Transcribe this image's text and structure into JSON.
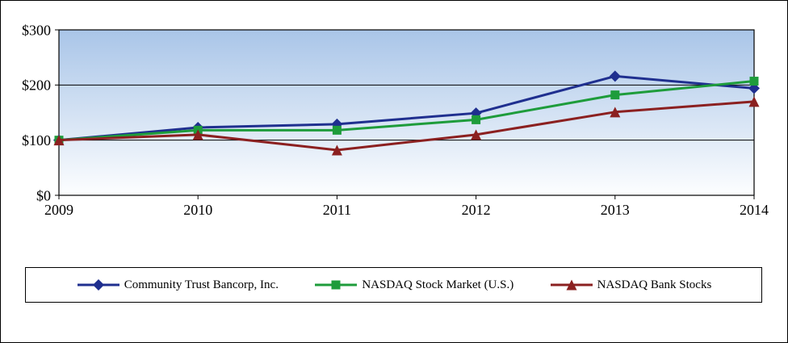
{
  "chart_data": {
    "type": "line",
    "title": "",
    "xlabel": "",
    "ylabel": "",
    "categories": [
      "2009",
      "2010",
      "2011",
      "2012",
      "2013",
      "2014"
    ],
    "ylim": [
      0,
      300
    ],
    "yticks": [
      0,
      100,
      200,
      300
    ],
    "ytick_labels": [
      "$0",
      "$100",
      "$200",
      "$300"
    ],
    "grid": "horizontal",
    "legend_position": "bottom",
    "plot_background": "blue-to-white vertical gradient",
    "series": [
      {
        "name": "Community Trust Bancorp, Inc.",
        "color": "#1F2F8F",
        "marker": "diamond",
        "values": [
          100,
          123,
          129,
          149,
          216,
          194
        ]
      },
      {
        "name": "NASDAQ Stock Market (U.S.)",
        "color": "#1E9C3B",
        "marker": "square",
        "values": [
          100,
          118,
          118,
          137,
          182,
          207
        ]
      },
      {
        "name": "NASDAQ Bank Stocks",
        "color": "#8B2020",
        "marker": "triangle",
        "values": [
          100,
          110,
          82,
          110,
          151,
          170
        ]
      }
    ]
  },
  "colors": {
    "plot_bg_top": "#A9C5E8",
    "plot_bg_bottom": "#FDFEFF",
    "grid": "#000000",
    "border": "#000000"
  }
}
